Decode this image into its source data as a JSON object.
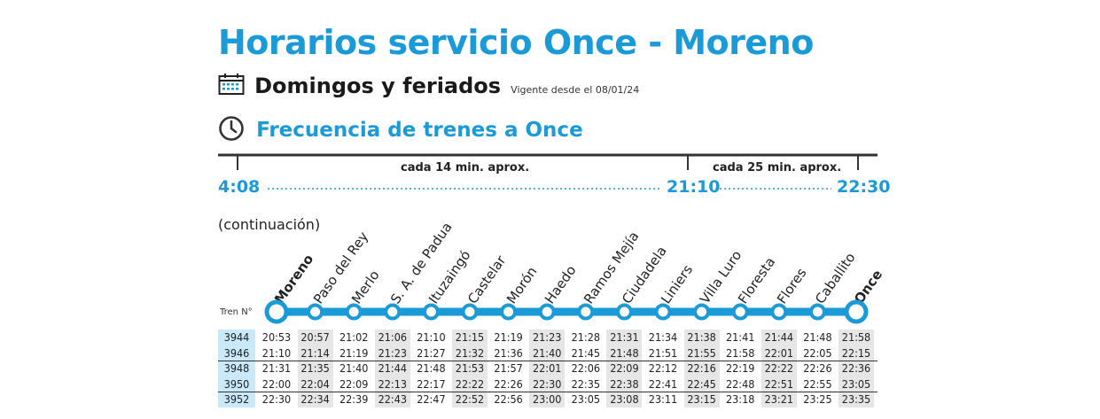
{
  "header": {
    "title": "Horarios servicio Once - Moreno",
    "subtitle": "Domingos y feriados",
    "vigente": "Vigente desde el 08/01/24",
    "frequency_title": "Frecuencia de trenes a Once"
  },
  "timeline": {
    "t_start": "4:08",
    "t_mid": "21:10",
    "t_end": "22:30",
    "label_1": "cada 14 min. aprox.",
    "label_2": "cada 25 min. aprox."
  },
  "continuation": "(continuación)",
  "tren_label": "Tren N°",
  "stations": [
    "Moreno",
    "Paso del Rey",
    "Merlo",
    "S. A. de Padua",
    "Ituzaingó",
    "Castelar",
    "Morón",
    "Haedo",
    "Ramos Mejía",
    "Ciudadela",
    "Liniers",
    "Villa Luro",
    "Floresta",
    "Flores",
    "Caballito",
    "Once"
  ],
  "trains": [
    {
      "num": "3944",
      "times": [
        "20:53",
        "20:57",
        "21:02",
        "21:06",
        "21:10",
        "21:15",
        "21:19",
        "21:23",
        "21:28",
        "21:31",
        "21:34",
        "21:38",
        "21:41",
        "21:44",
        "21:48",
        "21:58"
      ]
    },
    {
      "num": "3946",
      "times": [
        "21:10",
        "21:14",
        "21:19",
        "21:23",
        "21:27",
        "21:32",
        "21:36",
        "21:40",
        "21:45",
        "21:48",
        "21:51",
        "21:55",
        "21:58",
        "22:01",
        "22:05",
        "22:15"
      ]
    },
    {
      "num": "3948",
      "times": [
        "21:31",
        "21:35",
        "21:40",
        "21:44",
        "21:48",
        "21:53",
        "21:57",
        "22:01",
        "22:06",
        "22:09",
        "22:12",
        "22:16",
        "22:19",
        "22:22",
        "22:26",
        "22:36"
      ]
    },
    {
      "num": "3950",
      "times": [
        "22:00",
        "22:04",
        "22:09",
        "22:13",
        "22:17",
        "22:22",
        "22:26",
        "22:30",
        "22:35",
        "22:38",
        "22:41",
        "22:45",
        "22:48",
        "22:51",
        "22:55",
        "23:05"
      ]
    },
    {
      "num": "3952",
      "times": [
        "22:30",
        "22:34",
        "22:39",
        "22:43",
        "22:47",
        "22:52",
        "22:56",
        "23:00",
        "23:05",
        "23:08",
        "23:11",
        "23:15",
        "23:18",
        "23:21",
        "23:25",
        "23:35"
      ]
    }
  ],
  "colors": {
    "accent": "#1a9ad6",
    "shade": "#e6e6e6",
    "train_col": "#c9e8f8"
  }
}
